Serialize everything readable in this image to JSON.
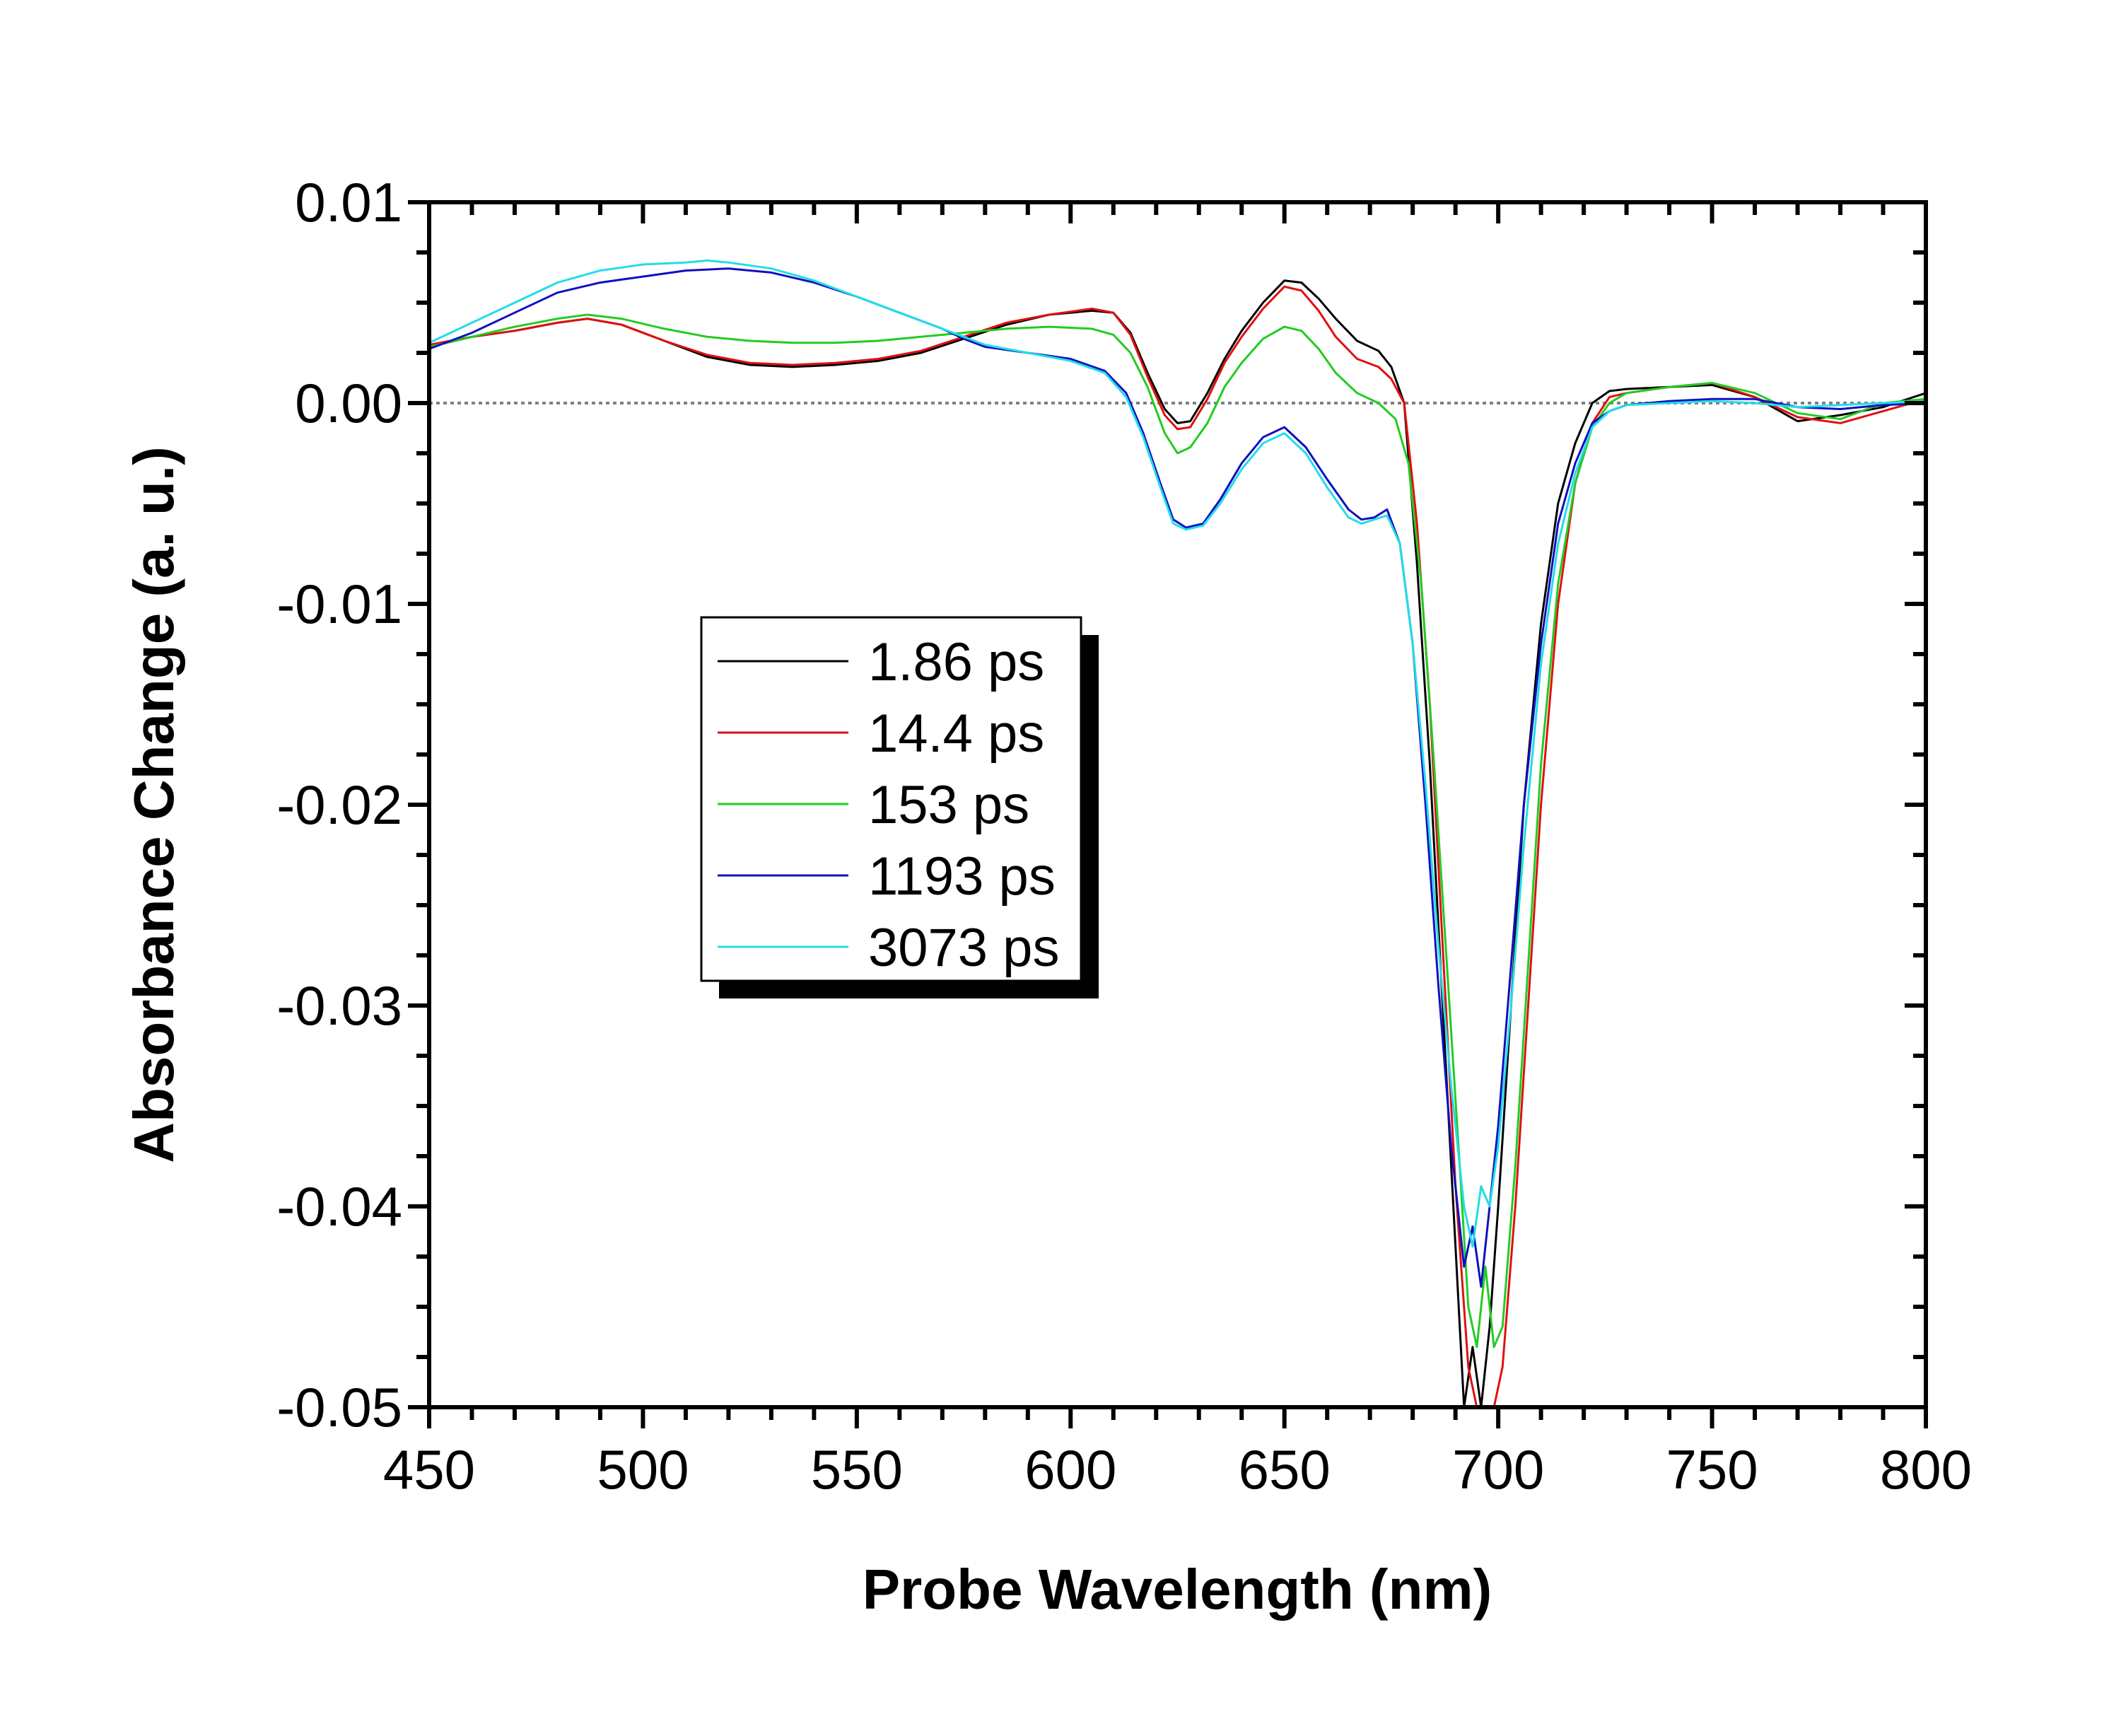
{
  "chart_data": {
    "type": "line",
    "title": "",
    "xlabel": "Probe Wavelength (nm)",
    "ylabel": "Absorbance Change (a. u.)",
    "xlim": [
      450,
      800
    ],
    "ylim": [
      -0.05,
      0.01
    ],
    "x_ticks": [
      "450",
      "500",
      "550",
      "600",
      "650",
      "700",
      "750",
      "800"
    ],
    "y_ticks": [
      "0.01",
      "0.00",
      "-0.01",
      "-0.02",
      "-0.03",
      "-0.04",
      "-0.05"
    ],
    "x_tick_values": [
      450,
      500,
      550,
      600,
      650,
      700,
      750,
      800
    ],
    "y_tick_values": [
      0.01,
      0.0,
      -0.01,
      -0.02,
      -0.03,
      -0.04,
      -0.05
    ],
    "grid": false,
    "zero_line": {
      "y": 0,
      "style": "dotted",
      "color": "#808080"
    },
    "legend": {
      "position": "center-left"
    },
    "series": [
      {
        "name": "1.86 ps",
        "color": "#000000",
        "x": [
          450,
          460,
          470,
          480,
          487,
          495,
          505,
          515,
          525,
          535,
          545,
          555,
          565,
          575,
          585,
          595,
          605,
          610,
          614,
          618,
          622,
          625,
          628,
          632,
          636,
          640,
          645,
          650,
          654,
          658,
          662,
          667,
          672,
          675,
          678,
          681,
          684,
          687,
          690,
          692,
          694,
          696,
          698,
          700,
          703,
          706,
          710,
          714,
          718,
          722,
          726,
          730,
          740,
          750,
          760,
          770,
          780,
          790,
          800
        ],
        "y": [
          0.0028,
          0.0033,
          0.0036,
          0.004,
          0.0042,
          0.0039,
          0.0031,
          0.0023,
          0.0019,
          0.0018,
          0.0019,
          0.0021,
          0.0025,
          0.0032,
          0.0039,
          0.0044,
          0.0046,
          0.0045,
          0.0035,
          0.0015,
          -0.0003,
          -0.001,
          -0.0009,
          0.0005,
          0.0022,
          0.0036,
          0.005,
          0.0061,
          0.006,
          0.0052,
          0.0042,
          0.0031,
          0.0026,
          0.0018,
          0.0,
          -0.008,
          -0.018,
          -0.03,
          -0.042,
          -0.05,
          -0.047,
          -0.05,
          -0.046,
          -0.04,
          -0.03,
          -0.02,
          -0.011,
          -0.005,
          -0.002,
          0.0,
          0.0006,
          0.0007,
          0.0008,
          0.0009,
          0.0003,
          -0.0009,
          -0.0006,
          -0.0002,
          0.0005
        ]
      },
      {
        "name": "14.4 ps",
        "color": "#e01010",
        "x": [
          450,
          460,
          470,
          480,
          487,
          495,
          505,
          515,
          525,
          535,
          545,
          555,
          565,
          575,
          585,
          595,
          605,
          610,
          614,
          618,
          622,
          625,
          628,
          632,
          636,
          640,
          645,
          650,
          654,
          658,
          662,
          667,
          672,
          675,
          678,
          681,
          684,
          687,
          690,
          693,
          695,
          697,
          699,
          701,
          704,
          707,
          710,
          714,
          718,
          722,
          726,
          730,
          740,
          750,
          760,
          770,
          780,
          790,
          800
        ],
        "y": [
          0.0029,
          0.0033,
          0.0036,
          0.004,
          0.0042,
          0.0039,
          0.0031,
          0.0024,
          0.002,
          0.0019,
          0.002,
          0.0022,
          0.0026,
          0.0033,
          0.004,
          0.0044,
          0.0047,
          0.0045,
          0.0034,
          0.0013,
          -0.0006,
          -0.0013,
          -0.0012,
          0.0002,
          0.002,
          0.0033,
          0.0047,
          0.0058,
          0.0056,
          0.0046,
          0.0033,
          0.0022,
          0.0018,
          0.0012,
          0.0,
          -0.006,
          -0.015,
          -0.027,
          -0.039,
          -0.048,
          -0.05,
          -0.05,
          -0.05,
          -0.048,
          -0.04,
          -0.03,
          -0.02,
          -0.01,
          -0.004,
          -0.001,
          0.0003,
          0.0005,
          0.0008,
          0.001,
          0.0003,
          -0.0007,
          -0.001,
          -0.0004,
          0.0002
        ]
      },
      {
        "name": "153 ps",
        "color": "#22cc22",
        "x": [
          450,
          460,
          470,
          480,
          487,
          495,
          505,
          515,
          525,
          535,
          545,
          555,
          565,
          575,
          585,
          595,
          605,
          610,
          614,
          618,
          622,
          625,
          628,
          632,
          636,
          640,
          645,
          650,
          654,
          658,
          662,
          667,
          672,
          676,
          679,
          682,
          685,
          688,
          691,
          693,
          695,
          697,
          699,
          701,
          704,
          707,
          710,
          714,
          718,
          722,
          726,
          730,
          740,
          750,
          760,
          770,
          780,
          790,
          800
        ],
        "y": [
          0.0028,
          0.0033,
          0.0038,
          0.0042,
          0.0044,
          0.0042,
          0.0037,
          0.0033,
          0.0031,
          0.003,
          0.003,
          0.0031,
          0.0033,
          0.0035,
          0.0037,
          0.0038,
          0.0037,
          0.0034,
          0.0025,
          0.0008,
          -0.0015,
          -0.0025,
          -0.0022,
          -0.001,
          0.0008,
          0.002,
          0.0032,
          0.0038,
          0.0036,
          0.0027,
          0.0015,
          0.0005,
          0.0,
          -0.0008,
          -0.003,
          -0.009,
          -0.018,
          -0.028,
          -0.038,
          -0.045,
          -0.047,
          -0.043,
          -0.047,
          -0.046,
          -0.038,
          -0.028,
          -0.018,
          -0.009,
          -0.004,
          -0.0012,
          0.0,
          0.0005,
          0.0008,
          0.001,
          0.0005,
          -0.0005,
          -0.0008,
          0.0,
          0.0002
        ]
      },
      {
        "name": "1193 ps",
        "color": "#1010c0",
        "x": [
          450,
          460,
          470,
          480,
          490,
          500,
          510,
          520,
          530,
          540,
          550,
          560,
          570,
          575,
          580,
          590,
          600,
          608,
          613,
          617,
          621,
          624,
          627,
          631,
          635,
          640,
          645,
          650,
          655,
          660,
          665,
          668,
          671,
          674,
          677,
          680,
          683,
          686,
          689,
          692,
          694,
          696,
          698,
          700,
          703,
          706,
          710,
          714,
          718,
          722,
          726,
          730,
          740,
          750,
          760,
          770,
          780,
          790,
          800
        ],
        "y": [
          0.0027,
          0.0035,
          0.0045,
          0.0055,
          0.006,
          0.0063,
          0.0066,
          0.0067,
          0.0065,
          0.006,
          0.0053,
          0.0045,
          0.0037,
          0.0032,
          0.0028,
          0.0025,
          0.0022,
          0.0016,
          0.0005,
          -0.0015,
          -0.004,
          -0.0058,
          -0.0062,
          -0.006,
          -0.0048,
          -0.003,
          -0.0017,
          -0.0012,
          -0.0022,
          -0.0038,
          -0.0053,
          -0.0058,
          -0.0057,
          -0.0053,
          -0.007,
          -0.012,
          -0.02,
          -0.029,
          -0.037,
          -0.043,
          -0.041,
          -0.044,
          -0.04,
          -0.036,
          -0.028,
          -0.02,
          -0.012,
          -0.006,
          -0.003,
          -0.001,
          -0.0004,
          -0.0001,
          0.0001,
          0.0002,
          0.0002,
          -0.0002,
          -0.0003,
          -0.0001,
          0.0
        ]
      },
      {
        "name": "3073 ps",
        "color": "#22dde8",
        "x": [
          450,
          460,
          470,
          480,
          490,
          500,
          510,
          515,
          520,
          530,
          540,
          550,
          560,
          570,
          575,
          580,
          590,
          600,
          608,
          613,
          617,
          621,
          624,
          627,
          631,
          635,
          640,
          645,
          650,
          655,
          660,
          665,
          668,
          671,
          674,
          677,
          680,
          683,
          686,
          689,
          692,
          694,
          696,
          698,
          700,
          703,
          706,
          710,
          714,
          718,
          722,
          726,
          730,
          740,
          750,
          760,
          770,
          780,
          790,
          800
        ],
        "y": [
          0.003,
          0.004,
          0.005,
          0.006,
          0.0066,
          0.0069,
          0.007,
          0.0071,
          0.007,
          0.0067,
          0.0061,
          0.0053,
          0.0045,
          0.0037,
          0.0033,
          0.0029,
          0.0025,
          0.0021,
          0.0015,
          0.0003,
          -0.0017,
          -0.0042,
          -0.006,
          -0.0063,
          -0.0061,
          -0.005,
          -0.0033,
          -0.002,
          -0.0015,
          -0.0025,
          -0.0042,
          -0.0057,
          -0.006,
          -0.0058,
          -0.0056,
          -0.007,
          -0.012,
          -0.019,
          -0.027,
          -0.034,
          -0.04,
          -0.042,
          -0.039,
          -0.04,
          -0.037,
          -0.03,
          -0.022,
          -0.013,
          -0.007,
          -0.0035,
          -0.0012,
          -0.0004,
          -0.0001,
          0.0,
          0.0001,
          0.0,
          -0.0002,
          -0.0001,
          0.0,
          0.0001
        ]
      }
    ]
  }
}
